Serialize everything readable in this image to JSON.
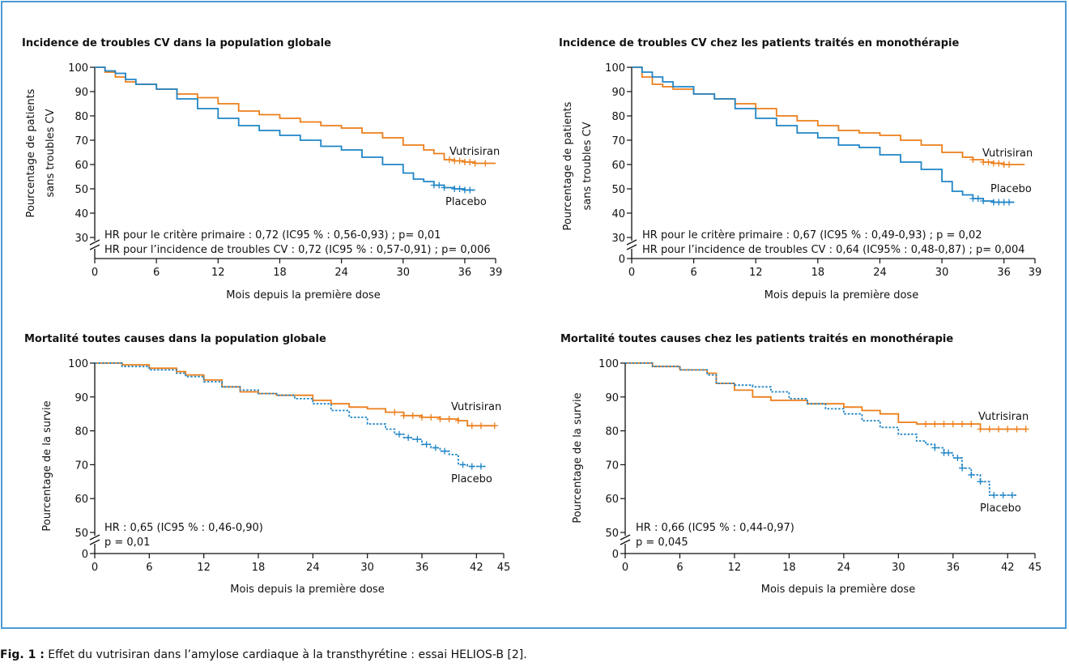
{
  "figure": {
    "caption_label": "Fig. 1 :",
    "caption_text": " Effet du vutrisiran dans l’amylose cardiaque à la transthyrétine : essai HELIOS-B [2]."
  },
  "colors": {
    "vutrisiran": "#ec7f1b",
    "placebo": "#1f85c6",
    "axis": "#111111",
    "frame": "#4a9ad4"
  },
  "chart_data": [
    {
      "type": "line",
      "title": "Incidence de troubles CV dans la population globale",
      "xlabel": "Mois depuis la première dose",
      "ylabel": [
        "Pourcentage de patients",
        "sans troubles CV"
      ],
      "xlim": [
        0,
        39
      ],
      "xticks": [
        0,
        6,
        12,
        18,
        24,
        30,
        36,
        39
      ],
      "ylim": [
        30,
        100
      ],
      "yticks": [
        30,
        40,
        50,
        60,
        70,
        80,
        90,
        100
      ],
      "y_zero": "",
      "annotations": [
        "HR pour le critère primaire : 0,72 (IC95 % : 0,56-0,93) ; p= 0,01",
        "HR pour l’incidence de troubles CV : 0,72 (IC95 % : 0,57-0,91) ; p= 0,006"
      ],
      "series": [
        {
          "name": "Vutrisiran",
          "color": "#ec7f1b",
          "x": [
            0,
            1,
            2,
            3,
            4,
            6,
            8,
            10,
            12,
            14,
            16,
            18,
            20,
            22,
            24,
            26,
            28,
            30,
            32,
            33,
            34,
            35,
            36,
            37,
            38,
            39
          ],
          "y": [
            100,
            98,
            96,
            94,
            93,
            91,
            89,
            87.5,
            85,
            82,
            80.5,
            79,
            77.5,
            76,
            75,
            73,
            71,
            68,
            66,
            64.5,
            62,
            61.5,
            61,
            60.5,
            60.5,
            60.5
          ],
          "censor_x": [
            34.5,
            35,
            35.5,
            36,
            36.5,
            37,
            38
          ]
        },
        {
          "name": "Placebo",
          "color": "#1f85c6",
          "x": [
            0,
            1,
            2,
            3,
            4,
            6,
            8,
            10,
            12,
            14,
            16,
            18,
            20,
            22,
            24,
            26,
            28,
            30,
            31,
            32,
            33,
            34,
            35,
            36,
            37
          ],
          "y": [
            100,
            98.5,
            97.5,
            95,
            93,
            91,
            87,
            83,
            79,
            76,
            74,
            72,
            70,
            67.5,
            66,
            63,
            60,
            56.5,
            54,
            53,
            51.5,
            50.5,
            50,
            49.5,
            49.5
          ],
          "censor_x": [
            33,
            33.5,
            34,
            35,
            35.5,
            36,
            36.5
          ]
        }
      ],
      "labels": [
        {
          "text": "Vutrisiran",
          "series": "Vutrisiran"
        },
        {
          "text": "Placebo",
          "series": "Placebo"
        }
      ]
    },
    {
      "type": "line",
      "title": "Incidence de troubles CV chez les patients traités en monothérapie",
      "xlabel": "Mois depuis la première dose",
      "ylabel": [
        "Pourcentage de patients",
        "sans troubles CV"
      ],
      "xlim": [
        0,
        39
      ],
      "xticks": [
        0,
        6,
        12,
        18,
        24,
        30,
        36,
        39
      ],
      "ylim": [
        30,
        100
      ],
      "yticks": [
        30,
        40,
        50,
        60,
        70,
        80,
        90,
        100
      ],
      "y_zero": "0",
      "annotations": [
        "HR pour le critère primaire : 0,67 (IC95 % : 0,49-0,93) ; p = 0,02",
        "HR pour l’incidence de troubles CV : 0,64 (IC95% : 0,48-0,87) ; p= 0,004"
      ],
      "series": [
        {
          "name": "Vutrisiran",
          "color": "#ec7f1b",
          "x": [
            0,
            1,
            2,
            3,
            4,
            6,
            8,
            10,
            12,
            14,
            16,
            18,
            20,
            22,
            24,
            26,
            28,
            30,
            32,
            33,
            34,
            35,
            36,
            37,
            38
          ],
          "y": [
            100,
            96,
            93,
            92,
            91,
            89,
            87,
            85,
            83,
            80,
            78,
            76,
            74,
            73,
            72,
            70,
            68,
            65,
            63,
            62,
            61,
            60.5,
            60,
            60,
            60
          ],
          "censor_x": [
            33,
            34,
            34.5,
            35,
            35.5,
            36,
            36.5
          ]
        },
        {
          "name": "Placebo",
          "color": "#1f85c6",
          "x": [
            0,
            1,
            2,
            3,
            4,
            6,
            8,
            10,
            12,
            14,
            16,
            18,
            20,
            22,
            24,
            26,
            28,
            30,
            31,
            32,
            33,
            34,
            35,
            36,
            37
          ],
          "y": [
            100,
            98,
            96,
            94,
            92,
            89,
            87,
            83,
            79,
            76,
            73,
            71,
            68,
            67,
            64,
            61,
            58,
            53,
            49,
            47.5,
            46,
            45,
            44.5,
            44.5,
            44.5
          ],
          "censor_x": [
            33,
            33.5,
            34,
            35,
            35.5,
            36,
            36.5
          ]
        }
      ],
      "labels": [
        {
          "text": "Vutrisiran",
          "series": "Vutrisiran"
        },
        {
          "text": "Placebo",
          "series": "Placebo"
        }
      ]
    },
    {
      "type": "line",
      "title": "Mortalité toutes causes dans la population globale",
      "xlabel": "Mois depuis la première dose",
      "ylabel": [
        "Pourcentage de la survie"
      ],
      "xlim": [
        0,
        45
      ],
      "xticks": [
        0,
        6,
        12,
        18,
        24,
        30,
        36,
        42,
        45
      ],
      "ylim": [
        50,
        100
      ],
      "yticks": [
        50,
        60,
        70,
        80,
        90,
        100
      ],
      "y_zero": "0",
      "annotations": [
        "HR : 0,65 (IC95 % : 0,46-0,90)",
        "p = 0,01"
      ],
      "series": [
        {
          "name": "Vutrisiran",
          "color": "#ec7f1b",
          "x": [
            0,
            3,
            6,
            9,
            10,
            12,
            14,
            16,
            18,
            20,
            24,
            26,
            28,
            30,
            32,
            34,
            36,
            38,
            40,
            41,
            42,
            44
          ],
          "y": [
            100,
            99.5,
            98.5,
            97.5,
            96.5,
            95,
            93,
            91.5,
            91,
            90.5,
            89,
            88,
            87,
            86.5,
            85.5,
            84.5,
            84,
            83.5,
            83,
            81.5,
            81.5,
            81.5
          ],
          "censor_x": [
            33,
            34,
            35,
            36,
            37,
            38,
            39,
            40,
            41.5,
            42.5,
            44
          ]
        },
        {
          "name": "Placebo",
          "color": "#1f85c6",
          "dashed": true,
          "x": [
            0,
            3,
            6,
            9,
            10,
            12,
            14,
            16,
            18,
            20,
            22,
            24,
            26,
            28,
            30,
            32,
            33,
            34,
            35,
            36,
            37,
            38,
            39,
            40,
            41,
            42,
            43
          ],
          "y": [
            100,
            99,
            98,
            97,
            96,
            94.5,
            93,
            92,
            91,
            90.5,
            89.5,
            88,
            86,
            84,
            82,
            80.5,
            79,
            78,
            77.5,
            76,
            75,
            74,
            73,
            70,
            69.5,
            69.5,
            69.5
          ],
          "censor_x": [
            33.5,
            34.5,
            35.5,
            36.5,
            37.5,
            38.5,
            40.5,
            41.5,
            42.5
          ]
        }
      ],
      "labels": [
        {
          "text": "Vutrisiran",
          "series": "Vutrisiran"
        },
        {
          "text": "Placebo",
          "series": "Placebo"
        }
      ]
    },
    {
      "type": "line",
      "title": "Mortalité toutes causes chez les patients traités en monothérapie",
      "xlabel": "Mois depuis la première dose",
      "ylabel": [
        "Pourcentage de la survie"
      ],
      "xlim": [
        0,
        45
      ],
      "xticks": [
        0,
        6,
        12,
        18,
        24,
        30,
        36,
        42,
        45
      ],
      "ylim": [
        50,
        100
      ],
      "yticks": [
        50,
        60,
        70,
        80,
        90,
        100
      ],
      "y_zero": "0",
      "annotations": [
        "HR : 0,66 (IC95 % : 0,44-0,97)",
        "p = 0,045"
      ],
      "series": [
        {
          "name": "Vutrisiran",
          "color": "#ec7f1b",
          "x": [
            0,
            3,
            6,
            9,
            10,
            12,
            14,
            16,
            18,
            20,
            22,
            24,
            26,
            28,
            30,
            32,
            34,
            36,
            38,
            39,
            40,
            42,
            44
          ],
          "y": [
            100,
            99,
            98,
            97,
            94,
            92,
            90,
            89,
            89,
            88,
            88,
            87,
            86,
            85,
            82.5,
            82,
            82,
            82,
            82,
            80.5,
            80.5,
            80.5,
            80.5
          ],
          "censor_x": [
            33,
            34,
            35,
            36,
            37,
            38,
            39,
            40,
            41,
            42,
            43,
            44
          ]
        },
        {
          "name": "Placebo",
          "color": "#1f85c6",
          "dashed": true,
          "x": [
            0,
            3,
            6,
            9,
            10,
            12,
            14,
            16,
            18,
            20,
            22,
            24,
            26,
            28,
            30,
            32,
            33,
            34,
            35,
            36,
            37,
            38,
            39,
            40,
            41,
            42,
            43
          ],
          "y": [
            100,
            99,
            98,
            96.5,
            94,
            93.5,
            93,
            91.5,
            89.5,
            88,
            86.5,
            85,
            83,
            81,
            79,
            77,
            76,
            75,
            73.5,
            72,
            69,
            67,
            65,
            61,
            61,
            61,
            61
          ],
          "censor_x": [
            34,
            35,
            35.5,
            36.5,
            37,
            38,
            39,
            40.5,
            41.5,
            42.5
          ]
        }
      ],
      "labels": [
        {
          "text": "Vutrisiran",
          "series": "Vutrisiran"
        },
        {
          "text": "Placebo",
          "series": "Placebo"
        }
      ]
    }
  ]
}
